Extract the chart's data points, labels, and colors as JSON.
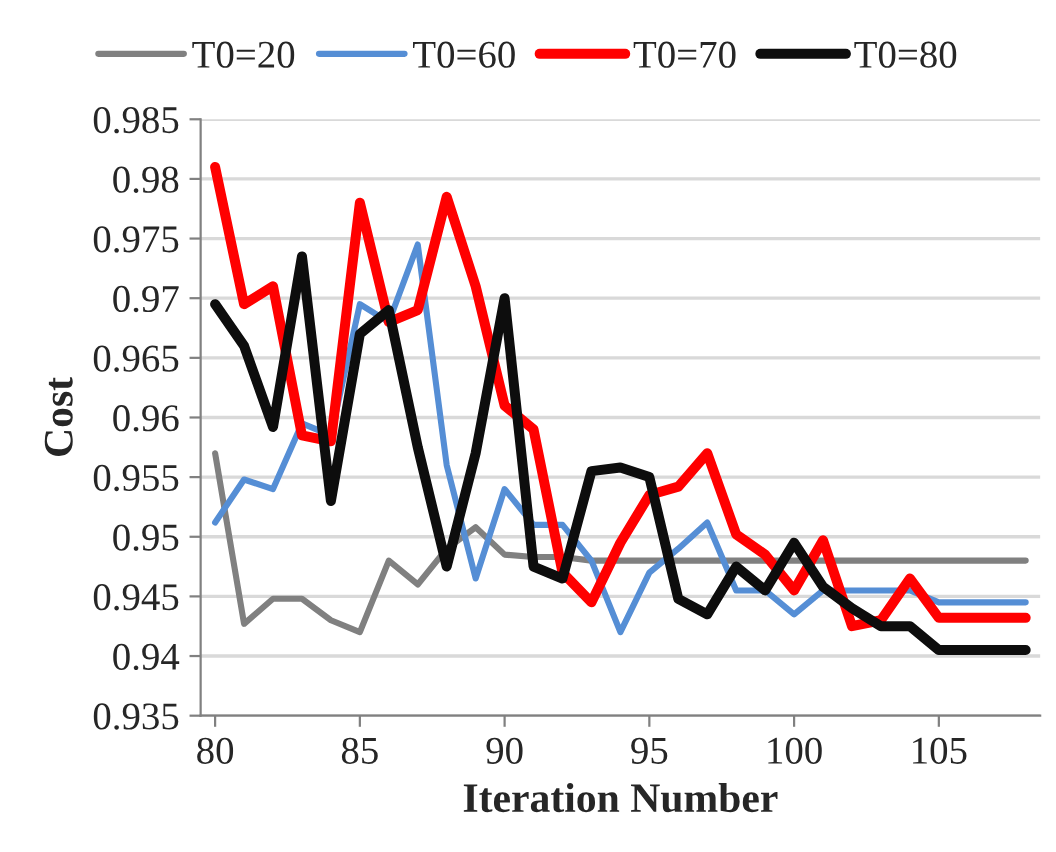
{
  "chart_data": {
    "type": "line",
    "xlabel": "Iteration Number",
    "ylabel": "Cost",
    "x": [
      80,
      81,
      82,
      83,
      84,
      85,
      86,
      87,
      88,
      89,
      90,
      91,
      92,
      93,
      94,
      95,
      96,
      97,
      98,
      99,
      100,
      101,
      102,
      103,
      104,
      105,
      106,
      107,
      108
    ],
    "xlim": [
      79.5,
      108.5
    ],
    "xticks": [
      80,
      85,
      90,
      95,
      100,
      105
    ],
    "ylim": [
      0.935,
      0.985
    ],
    "yticks": [
      0.935,
      0.94,
      0.945,
      0.95,
      0.955,
      0.96,
      0.965,
      0.97,
      0.975,
      0.98,
      0.985
    ],
    "grid": "y",
    "legend": "top",
    "marker": "none",
    "line_style": "solid",
    "series": [
      {
        "name": "T0=20",
        "color": "#808080",
        "values": [
          0.957,
          0.9427,
          0.9448,
          0.9448,
          0.943,
          0.942,
          0.948,
          0.946,
          0.949,
          0.9508,
          0.9485,
          0.9483,
          0.9483,
          0.948,
          0.948,
          0.948,
          0.948,
          0.948,
          0.948,
          0.948,
          0.948,
          0.948,
          0.948,
          0.948,
          0.948,
          0.948,
          0.948,
          0.948,
          0.948
        ]
      },
      {
        "name": "T0=60",
        "color": "#558ed5",
        "values": [
          0.9512,
          0.9548,
          0.954,
          0.9595,
          0.9585,
          0.9695,
          0.968,
          0.9745,
          0.956,
          0.9465,
          0.954,
          0.951,
          0.951,
          0.948,
          0.942,
          0.947,
          0.949,
          0.9512,
          0.9455,
          0.9455,
          0.9435,
          0.9455,
          0.9455,
          0.9455,
          0.9455,
          0.9445,
          0.9445,
          0.9445,
          0.9445
        ]
      },
      {
        "name": "T0=70",
        "color": "#ff0000",
        "values": [
          0.981,
          0.9695,
          0.971,
          0.9585,
          0.958,
          0.978,
          0.968,
          0.969,
          0.9785,
          0.971,
          0.961,
          0.959,
          0.947,
          0.9445,
          0.9495,
          0.9535,
          0.9542,
          0.957,
          0.9502,
          0.9485,
          0.9455,
          0.9497,
          0.9425,
          0.943,
          0.9465,
          0.9432,
          0.9432,
          0.9432,
          0.9432
        ]
      },
      {
        "name": "T0=80",
        "color": "#0d0d0d",
        "values": [
          0.9695,
          0.966,
          0.9592,
          0.9735,
          0.953,
          0.967,
          0.969,
          0.9575,
          0.9475,
          0.957,
          0.97,
          0.9475,
          0.9465,
          0.9555,
          0.9558,
          0.955,
          0.9448,
          0.9435,
          0.9475,
          0.9455,
          0.9495,
          0.9458,
          0.944,
          0.9425,
          0.9425,
          0.9405,
          0.9405,
          0.9405,
          0.9405
        ]
      }
    ]
  }
}
